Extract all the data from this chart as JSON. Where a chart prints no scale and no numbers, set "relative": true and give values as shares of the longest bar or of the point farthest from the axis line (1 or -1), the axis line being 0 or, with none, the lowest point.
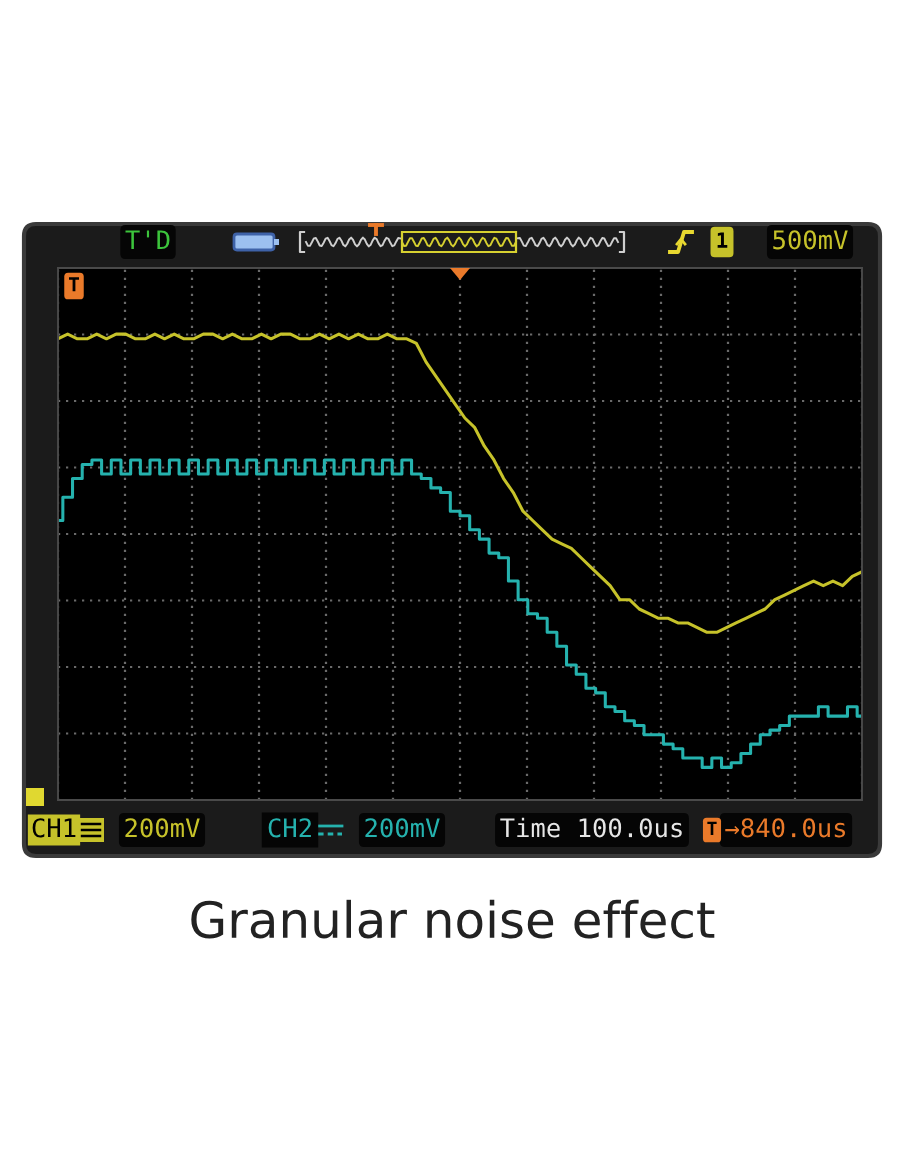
{
  "chart_data": {
    "type": "line",
    "relative": true,
    "categories": [
      null,
      null,
      null,
      null,
      null,
      null,
      null,
      null,
      null,
      null,
      null,
      null,
      null,
      null,
      null,
      null,
      null,
      null,
      null,
      null,
      null,
      null,
      null,
      null,
      null,
      null,
      null,
      null,
      null,
      null,
      null,
      null,
      null,
      null,
      null,
      null,
      null,
      null,
      null,
      null,
      null,
      null,
      null,
      null,
      null,
      null,
      null,
      null,
      null,
      null,
      null,
      null,
      null,
      null,
      null,
      null,
      null,
      null,
      null,
      null,
      null,
      null,
      null,
      null,
      null,
      null,
      null,
      null,
      null,
      null,
      null,
      null,
      null,
      null,
      null,
      null,
      null,
      null,
      null,
      null,
      null,
      null,
      null,
      null
    ],
    "series": [
      {
        "name": "CH1",
        "color": "#c6c22a",
        "values": [
          0.99,
          1.0,
          0.99,
          0.99,
          1.0,
          0.99,
          1.0,
          1.0,
          0.99,
          0.99,
          1.0,
          0.99,
          1.0,
          0.99,
          0.99,
          1.0,
          1.0,
          0.99,
          1.0,
          0.99,
          0.99,
          1.0,
          0.99,
          1.0,
          1.0,
          0.99,
          0.99,
          1.0,
          0.99,
          1.0,
          0.99,
          1.0,
          0.99,
          0.99,
          1.0,
          0.99,
          0.99,
          0.98,
          0.94,
          0.91,
          0.88,
          0.85,
          0.82,
          0.8,
          0.76,
          0.73,
          0.69,
          0.66,
          0.62,
          0.6,
          0.58,
          0.56,
          0.55,
          0.54,
          0.52,
          0.5,
          0.48,
          0.46,
          0.43,
          0.43,
          0.41,
          0.4,
          0.39,
          0.39,
          0.38,
          0.38,
          0.37,
          0.36,
          0.36,
          0.37,
          0.38,
          0.39,
          0.4,
          0.41,
          0.43,
          0.44,
          0.45,
          0.46,
          0.47,
          0.46,
          0.47,
          0.46,
          0.48,
          0.49
        ]
      },
      {
        "name": "CH2",
        "color": "#25b2ae",
        "type": "step",
        "values": [
          0.6,
          0.65,
          0.69,
          0.72,
          0.73,
          0.7,
          0.73,
          0.7,
          0.73,
          0.7,
          0.73,
          0.7,
          0.73,
          0.7,
          0.73,
          0.7,
          0.73,
          0.7,
          0.73,
          0.7,
          0.73,
          0.7,
          0.73,
          0.7,
          0.73,
          0.7,
          0.73,
          0.7,
          0.73,
          0.7,
          0.73,
          0.7,
          0.73,
          0.7,
          0.73,
          0.7,
          0.73,
          0.7,
          0.69,
          0.67,
          0.66,
          0.62,
          0.61,
          0.58,
          0.56,
          0.53,
          0.52,
          0.47,
          0.43,
          0.4,
          0.39,
          0.36,
          0.33,
          0.29,
          0.27,
          0.24,
          0.23,
          0.2,
          0.19,
          0.17,
          0.16,
          0.14,
          0.14,
          0.12,
          0.11,
          0.09,
          0.09,
          0.07,
          0.09,
          0.07,
          0.08,
          0.1,
          0.12,
          0.14,
          0.15,
          0.16,
          0.18,
          0.18,
          0.18,
          0.2,
          0.18,
          0.18,
          0.2,
          0.18
        ]
      }
    ],
    "annotations": [
      "T'D",
      "1",
      "500mV",
      "200mV",
      "200mV",
      "Time 100.0us",
      "→840.0us",
      "T",
      "T",
      "Granular noise effect"
    ],
    "grid": true,
    "legend": "bottom left"
  }
}
